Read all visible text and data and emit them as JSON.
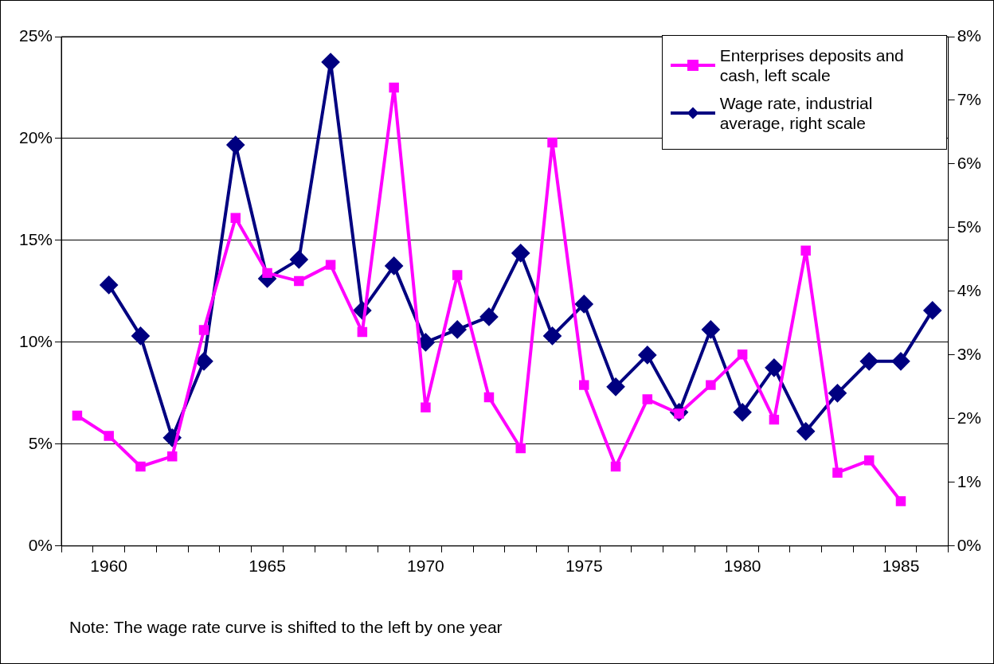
{
  "chart_data": {
    "type": "line",
    "categories": [
      null,
      "1960",
      null,
      null,
      null,
      null,
      "1965",
      null,
      null,
      null,
      null,
      "1970",
      null,
      null,
      null,
      null,
      "1975",
      null,
      null,
      null,
      null,
      "1980",
      null,
      null,
      null,
      null,
      "1985",
      null
    ],
    "series": [
      {
        "name": "Enterprises deposits and cash, left scale",
        "color": "#ff00ff",
        "marker": "square",
        "values": [
          6.4,
          5.4,
          3.9,
          4.4,
          10.6,
          16.1,
          13.4,
          13.0,
          13.8,
          10.5,
          22.5,
          6.8,
          13.3,
          7.3,
          4.8,
          19.8,
          7.9,
          3.9,
          7.2,
          6.5,
          7.9,
          9.4,
          6.2,
          14.5,
          3.6,
          4.2,
          2.2,
          null
        ]
      },
      {
        "name": "Wage rate, industrial average, right scale",
        "color": "#000080",
        "marker": "diamond",
        "axis": "y2",
        "values": [
          null,
          4.1,
          3.3,
          1.7,
          2.9,
          6.3,
          4.2,
          4.5,
          7.6,
          3.7,
          4.4,
          3.2,
          3.4,
          3.6,
          4.6,
          3.3,
          3.8,
          2.5,
          3.0,
          2.1,
          3.4,
          2.1,
          2.8,
          1.8,
          2.4,
          2.9,
          2.9,
          3.7
        ]
      }
    ],
    "ylim": [
      0,
      25
    ],
    "yticks": [
      {
        "value": 0,
        "label": "0%"
      },
      {
        "value": 5,
        "label": "5%"
      },
      {
        "value": 10,
        "label": "10%"
      },
      {
        "value": 15,
        "label": "15%"
      },
      {
        "value": 20,
        "label": "20%"
      },
      {
        "value": 25,
        "label": "25%"
      }
    ],
    "y2lim": [
      0,
      8
    ],
    "y2ticks": [
      {
        "value": 0,
        "label": "0%"
      },
      {
        "value": 1,
        "label": "1%"
      },
      {
        "value": 2,
        "label": "2%"
      },
      {
        "value": 3,
        "label": "3%"
      },
      {
        "value": 4,
        "label": "4%"
      },
      {
        "value": 5,
        "label": "5%"
      },
      {
        "value": 6,
        "label": "6%"
      },
      {
        "value": 7,
        "label": "7%"
      },
      {
        "value": 8,
        "label": "8%"
      }
    ],
    "grid": "y",
    "legend": "top right",
    "annotations": [
      "Note: The wage rate curve is shifted to the left by one year"
    ]
  }
}
